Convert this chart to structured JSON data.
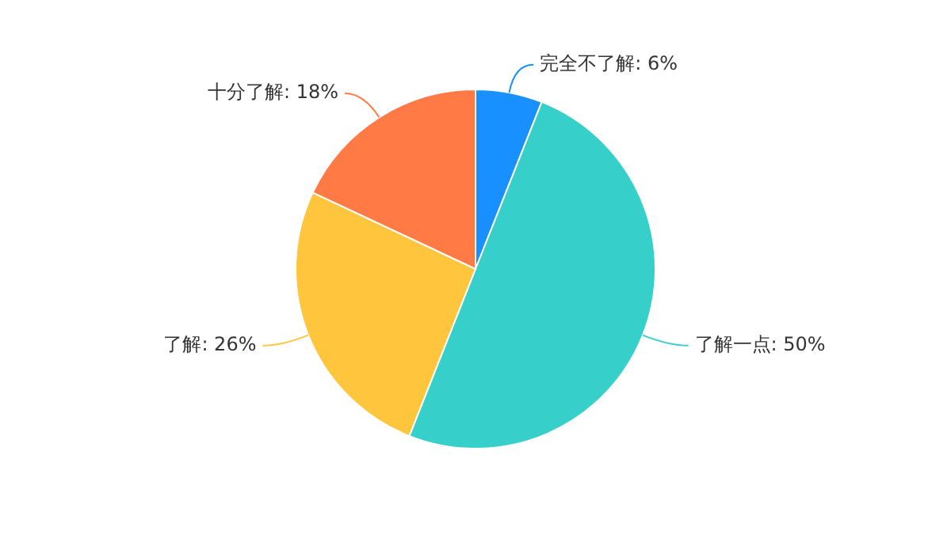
{
  "chart_data": {
    "type": "pie",
    "categories": [
      "完全不了解",
      "了解一点",
      "了解",
      "十分了解"
    ],
    "values": [
      6,
      50,
      26,
      18
    ],
    "colors": [
      "#1890ff",
      "#36cfc9",
      "#ffc53d",
      "#ff7a45"
    ],
    "value_labels": [
      "6%",
      "50%",
      "26%",
      "18%"
    ],
    "legend": false
  }
}
